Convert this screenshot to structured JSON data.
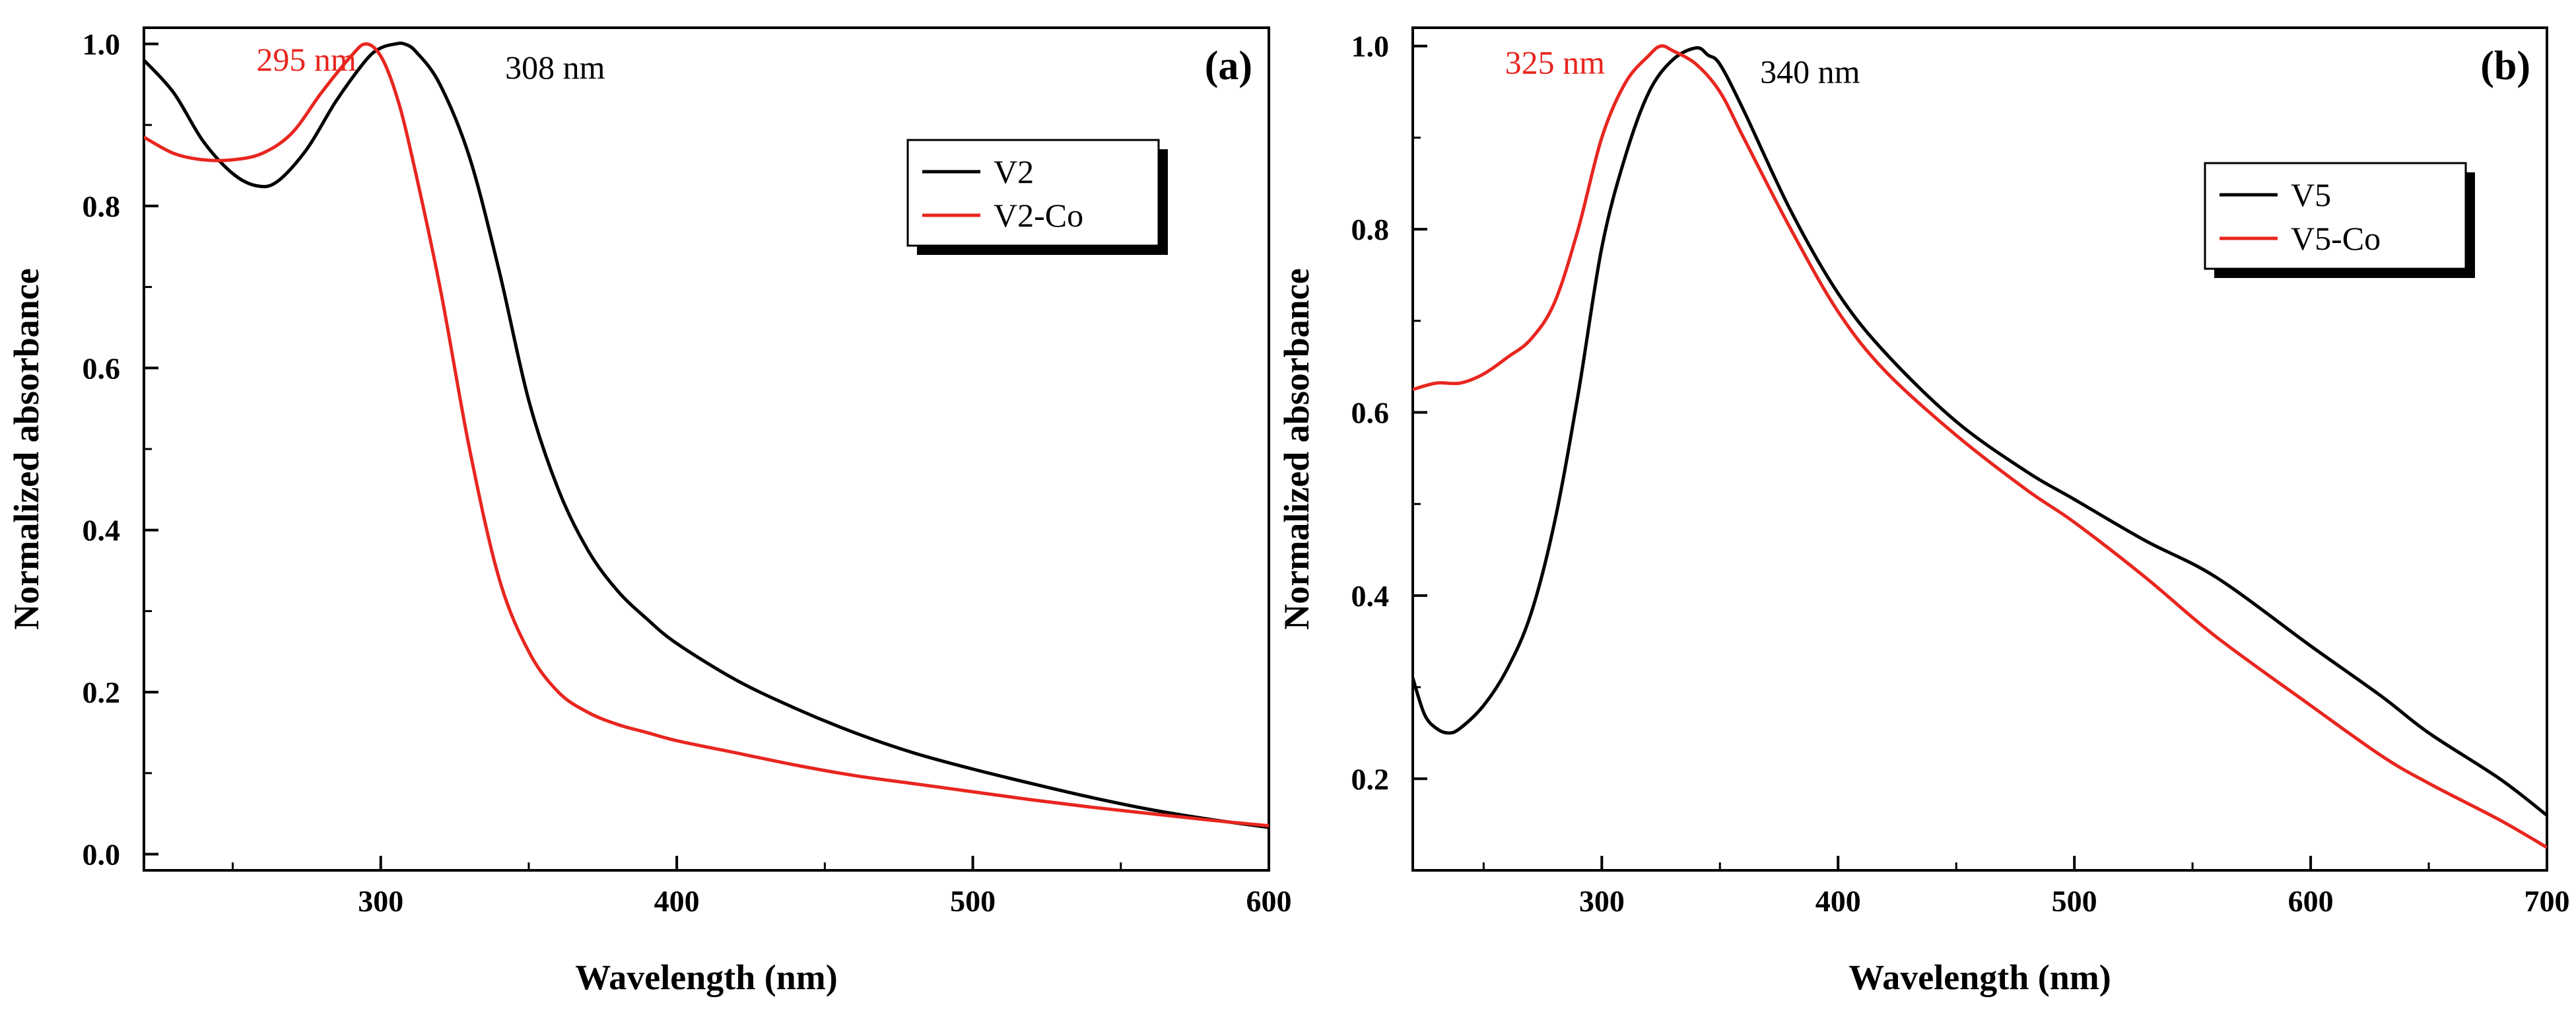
{
  "colors": {
    "black": "#000000",
    "red": "#e8261f",
    "axis": "#000000",
    "legend_shadow": "#000000"
  },
  "chart_data": [
    {
      "type": "line",
      "panel_label": "(a)",
      "xlabel": "Wavelength (nm)",
      "ylabel": "Normalized absorbance",
      "xlim": [
        220,
        600
      ],
      "ylim": [
        -0.02,
        1.02
      ],
      "xticks": [
        300,
        400,
        500,
        600
      ],
      "yticks": [
        0.0,
        0.2,
        0.4,
        0.6,
        0.8,
        1.0
      ],
      "ytick_labels": [
        "0.0",
        "0.2",
        "0.4",
        "0.6",
        "0.8",
        "1.0"
      ],
      "legend_position": "upper-right",
      "series": [
        {
          "name": "V2",
          "color": "#000000",
          "x": [
            220,
            230,
            240,
            250,
            258,
            265,
            275,
            285,
            295,
            300,
            305,
            308,
            312,
            320,
            330,
            340,
            350,
            360,
            370,
            380,
            390,
            400,
            420,
            440,
            460,
            480,
            500,
            520,
            540,
            560,
            580,
            600
          ],
          "y": [
            0.98,
            0.94,
            0.88,
            0.84,
            0.825,
            0.83,
            0.87,
            0.93,
            0.98,
            0.995,
            1.0,
            1.0,
            0.99,
            0.95,
            0.86,
            0.72,
            0.56,
            0.45,
            0.375,
            0.325,
            0.29,
            0.26,
            0.215,
            0.18,
            0.15,
            0.125,
            0.105,
            0.087,
            0.07,
            0.055,
            0.043,
            0.033
          ]
        },
        {
          "name": "V2-Co",
          "color": "#e8261f",
          "x": [
            220,
            230,
            240,
            250,
            260,
            270,
            280,
            290,
            295,
            300,
            305,
            310,
            320,
            330,
            340,
            350,
            360,
            370,
            380,
            390,
            400,
            420,
            440,
            460,
            480,
            500,
            520,
            540,
            560,
            580,
            600
          ],
          "y": [
            0.885,
            0.865,
            0.857,
            0.857,
            0.865,
            0.89,
            0.94,
            0.985,
            1.0,
            0.985,
            0.94,
            0.87,
            0.7,
            0.5,
            0.34,
            0.25,
            0.2,
            0.175,
            0.16,
            0.15,
            0.14,
            0.125,
            0.11,
            0.097,
            0.087,
            0.077,
            0.067,
            0.058,
            0.05,
            0.042,
            0.035
          ]
        }
      ],
      "annotations": [
        {
          "text": "295 nm",
          "x": 258,
          "y": 0.99,
          "color": "#e8261f"
        },
        {
          "text": "308 nm",
          "x": 342,
          "y": 0.98,
          "color": "#000000"
        }
      ]
    },
    {
      "type": "line",
      "panel_label": "(b)",
      "xlabel": "Wavelength (nm)",
      "ylabel": "Normalized absorbance",
      "xlim": [
        220,
        700
      ],
      "ylim": [
        0.1,
        1.02
      ],
      "xticks": [
        300,
        400,
        500,
        600,
        700
      ],
      "yticks": [
        0.2,
        0.4,
        0.6,
        0.8,
        1.0
      ],
      "ytick_labels": [
        "0.2",
        "0.4",
        "0.6",
        "0.8",
        "1.0"
      ],
      "legend_position": "upper-right",
      "series": [
        {
          "name": "V5",
          "color": "#000000",
          "x": [
            220,
            225,
            230,
            235,
            240,
            250,
            260,
            270,
            280,
            290,
            300,
            310,
            320,
            330,
            340,
            345,
            350,
            360,
            380,
            400,
            420,
            450,
            480,
            500,
            530,
            560,
            600,
            630,
            650,
            680,
            700
          ],
          "y": [
            0.31,
            0.27,
            0.255,
            0.25,
            0.255,
            0.28,
            0.32,
            0.38,
            0.48,
            0.62,
            0.78,
            0.88,
            0.95,
            0.985,
            0.998,
            0.99,
            0.98,
            0.93,
            0.82,
            0.73,
            0.665,
            0.59,
            0.535,
            0.505,
            0.46,
            0.42,
            0.345,
            0.29,
            0.25,
            0.2,
            0.16
          ]
        },
        {
          "name": "V5-Co",
          "color": "#e8261f",
          "x": [
            220,
            230,
            240,
            250,
            260,
            270,
            280,
            290,
            300,
            310,
            320,
            325,
            330,
            340,
            350,
            360,
            380,
            400,
            420,
            450,
            480,
            500,
            530,
            560,
            600,
            630,
            650,
            680,
            700
          ],
          "y": [
            0.625,
            0.632,
            0.632,
            0.642,
            0.66,
            0.68,
            0.72,
            0.8,
            0.9,
            0.96,
            0.99,
            1.0,
            0.995,
            0.98,
            0.95,
            0.9,
            0.8,
            0.71,
            0.645,
            0.575,
            0.515,
            0.48,
            0.42,
            0.355,
            0.28,
            0.225,
            0.195,
            0.155,
            0.125
          ]
        }
      ],
      "annotations": [
        {
          "text": "325 nm",
          "x": 259,
          "y": 0.99,
          "color": "#e8261f"
        },
        {
          "text": "340 nm",
          "x": 367,
          "y": 0.98,
          "color": "#000000"
        }
      ]
    }
  ]
}
